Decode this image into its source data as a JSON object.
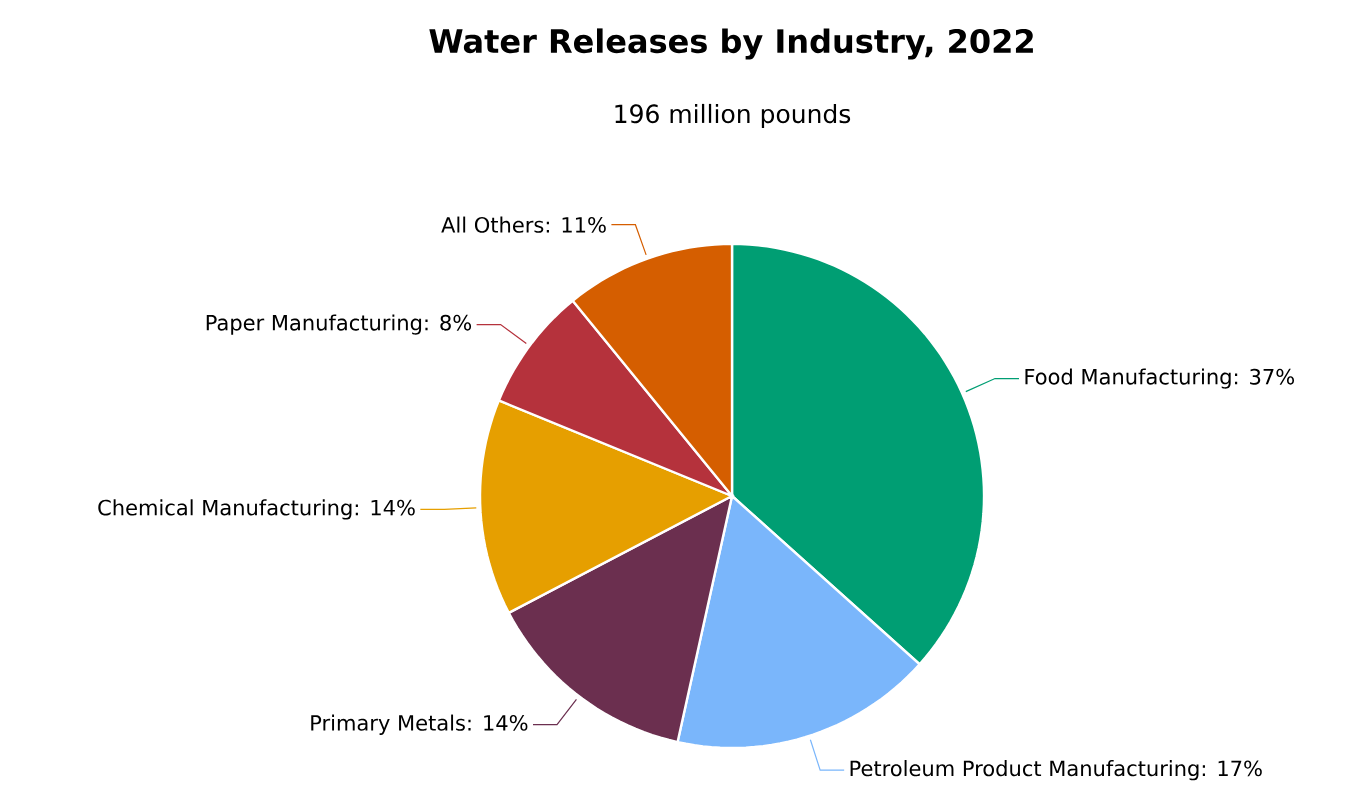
{
  "chart_data": {
    "type": "pie",
    "title": "Water Releases by Industry, 2022",
    "subtitle": "196 million pounds",
    "categories": [
      "Food Manufacturing: 37%",
      "Petroleum Product Manufacturing: 17%",
      "Primary Metals: 14%",
      "Chemical Manufacturing: 14%",
      "Paper Manufacturing: 8%",
      "All Others: 11%"
    ],
    "values": [
      37,
      17,
      14,
      14,
      8,
      11
    ],
    "colors": [
      "#009e73",
      "#7ab6fb",
      "#6b2f4f",
      "#e69f00",
      "#b5323c",
      "#d55e00"
    ]
  }
}
